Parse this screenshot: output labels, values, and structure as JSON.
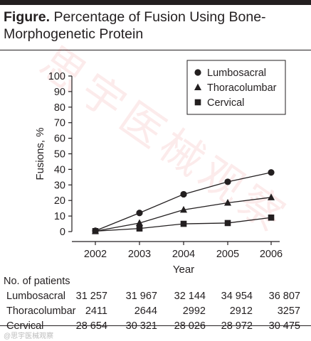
{
  "figure": {
    "lead": "Figure.",
    "title": "Percentage of Fusion Using Bone-Morphogenetic Protein"
  },
  "chart_data": {
    "type": "line",
    "x": [
      2002,
      2003,
      2004,
      2005,
      2006
    ],
    "xlabel": "Year",
    "ylabel": "Fusions, %",
    "ylim": [
      0,
      100
    ],
    "yticks": [
      0,
      10,
      20,
      30,
      40,
      50,
      60,
      70,
      80,
      90,
      100
    ],
    "grid": false,
    "legend_position": "top-right",
    "series": [
      {
        "name": "Lumbosacral",
        "marker": "circle",
        "values": [
          0.5,
          12,
          24,
          32,
          38
        ]
      },
      {
        "name": "Thoracolumbar",
        "marker": "triangle",
        "values": [
          0.3,
          5.5,
          14,
          18.5,
          22
        ]
      },
      {
        "name": "Cervical",
        "marker": "square",
        "values": [
          0.3,
          2,
          5,
          5.5,
          9
        ]
      }
    ]
  },
  "table": {
    "heading": "No. of patients",
    "rows": [
      {
        "label": "Lumbosacral",
        "values": [
          "31 257",
          "31 967",
          "32 144",
          "34 954",
          "36 807"
        ]
      },
      {
        "label": "Thoracolumbar",
        "values": [
          "2411",
          "2644",
          "2992",
          "2912",
          "3257"
        ]
      },
      {
        "label": "Cervical",
        "values": [
          "28 654",
          "30 321",
          "28 026",
          "28 972",
          "30 475"
        ]
      }
    ]
  },
  "watermark": {
    "text": "思宇医械观察",
    "small": "@思宇医械观察"
  }
}
